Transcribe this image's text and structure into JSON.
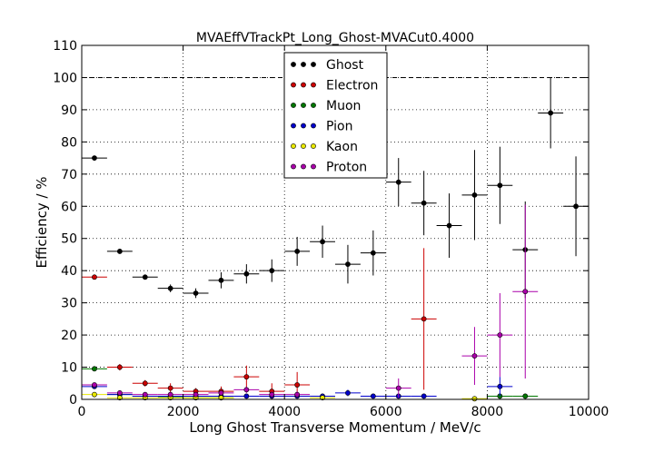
{
  "chart_data": {
    "type": "scatter",
    "title": "MVAEffVTrackPt_Long_Ghost-MVACut0.4000",
    "xlabel": "Long Ghost Transverse Momentum / MeV/c",
    "ylabel": "Efficiency / %",
    "xlim": [
      0,
      10000
    ],
    "ylim": [
      0,
      110
    ],
    "xticks": [
      "0",
      "2000",
      "4000",
      "6000",
      "8000",
      "10000"
    ],
    "yticks": [
      "0",
      "10",
      "20",
      "30",
      "40",
      "50",
      "60",
      "70",
      "80",
      "90",
      "100",
      "110"
    ],
    "grid": true,
    "reference_line": 100,
    "legend_position": "top-center",
    "series": [
      {
        "name": "Ghost",
        "color": "#000000",
        "x": [
          250,
          750,
          1250,
          1750,
          2250,
          2750,
          3250,
          3750,
          4250,
          4750,
          5250,
          5750,
          6250,
          6750,
          7250,
          7750,
          8250,
          8750,
          9250,
          9750
        ],
        "y": [
          75,
          46,
          38,
          34.5,
          33,
          37,
          39,
          40,
          46,
          49,
          42,
          45.5,
          67.5,
          61,
          54,
          63.5,
          66.5,
          46.5,
          89,
          60
        ],
        "yerr": [
          0.8,
          0.8,
          0.8,
          1.2,
          1.5,
          2.5,
          3,
          3.5,
          4.5,
          5,
          6,
          7,
          7.5,
          10,
          10,
          14,
          12,
          15,
          11,
          15.5
        ]
      },
      {
        "name": "Electron",
        "color": "#cc0000",
        "x": [
          250,
          750,
          1250,
          1750,
          2250,
          2750,
          3250,
          3750,
          4250,
          6750
        ],
        "y": [
          38,
          10,
          5,
          3.5,
          2.5,
          2.5,
          7,
          2.5,
          4.5,
          25
        ],
        "yerr": [
          0.8,
          1,
          1,
          1.5,
          1,
          1.5,
          3.5,
          2.5,
          4,
          22
        ]
      },
      {
        "name": "Muon",
        "color": "#007700",
        "x": [
          250,
          750,
          1250,
          1750,
          2250,
          2750,
          8250,
          8750
        ],
        "y": [
          9.5,
          1.5,
          1,
          0.8,
          0.5,
          0.5,
          1,
          1
        ],
        "yerr": [
          0.5,
          0.3,
          0.3,
          0.3,
          0.3,
          0.3,
          0.8,
          0.8
        ]
      },
      {
        "name": "Pion",
        "color": "#0000cc",
        "x": [
          250,
          750,
          1250,
          1750,
          2250,
          2750,
          3250,
          3750,
          4250,
          4750,
          5250,
          5750,
          6250,
          6750,
          8250
        ],
        "y": [
          4,
          1.5,
          1,
          1,
          1,
          1,
          1,
          1,
          1,
          1,
          2,
          1,
          1,
          1,
          4
        ],
        "yerr": [
          0.3,
          0.3,
          0.3,
          0.3,
          0.3,
          0.3,
          0.5,
          0.5,
          0.5,
          0.5,
          1,
          0.7,
          0.7,
          0.7,
          3
        ]
      },
      {
        "name": "Kaon",
        "color": "#e8e800",
        "x": [
          250,
          750,
          1250,
          1750,
          2250,
          2750,
          4750,
          7750
        ],
        "y": [
          1.5,
          0.5,
          0.5,
          0.5,
          0.5,
          0.5,
          0.5,
          0.2
        ],
        "yerr": [
          0.3,
          0.3,
          0.3,
          0.3,
          0.3,
          0.3,
          0.3,
          0.2
        ]
      },
      {
        "name": "Proton",
        "color": "#aa00aa",
        "x": [
          250,
          750,
          1250,
          1750,
          2250,
          2750,
          3250,
          3750,
          4250,
          6250,
          7750,
          8250,
          8750
        ],
        "y": [
          4.5,
          2,
          1.5,
          1.5,
          1.5,
          2,
          3,
          1.5,
          1.5,
          3.5,
          13.5,
          20,
          33.5
        ],
        "yerr": [
          0.4,
          0.5,
          0.5,
          0.5,
          0.5,
          0.7,
          1,
          1,
          1,
          3,
          9,
          13,
          27
        ]
      }
    ]
  }
}
